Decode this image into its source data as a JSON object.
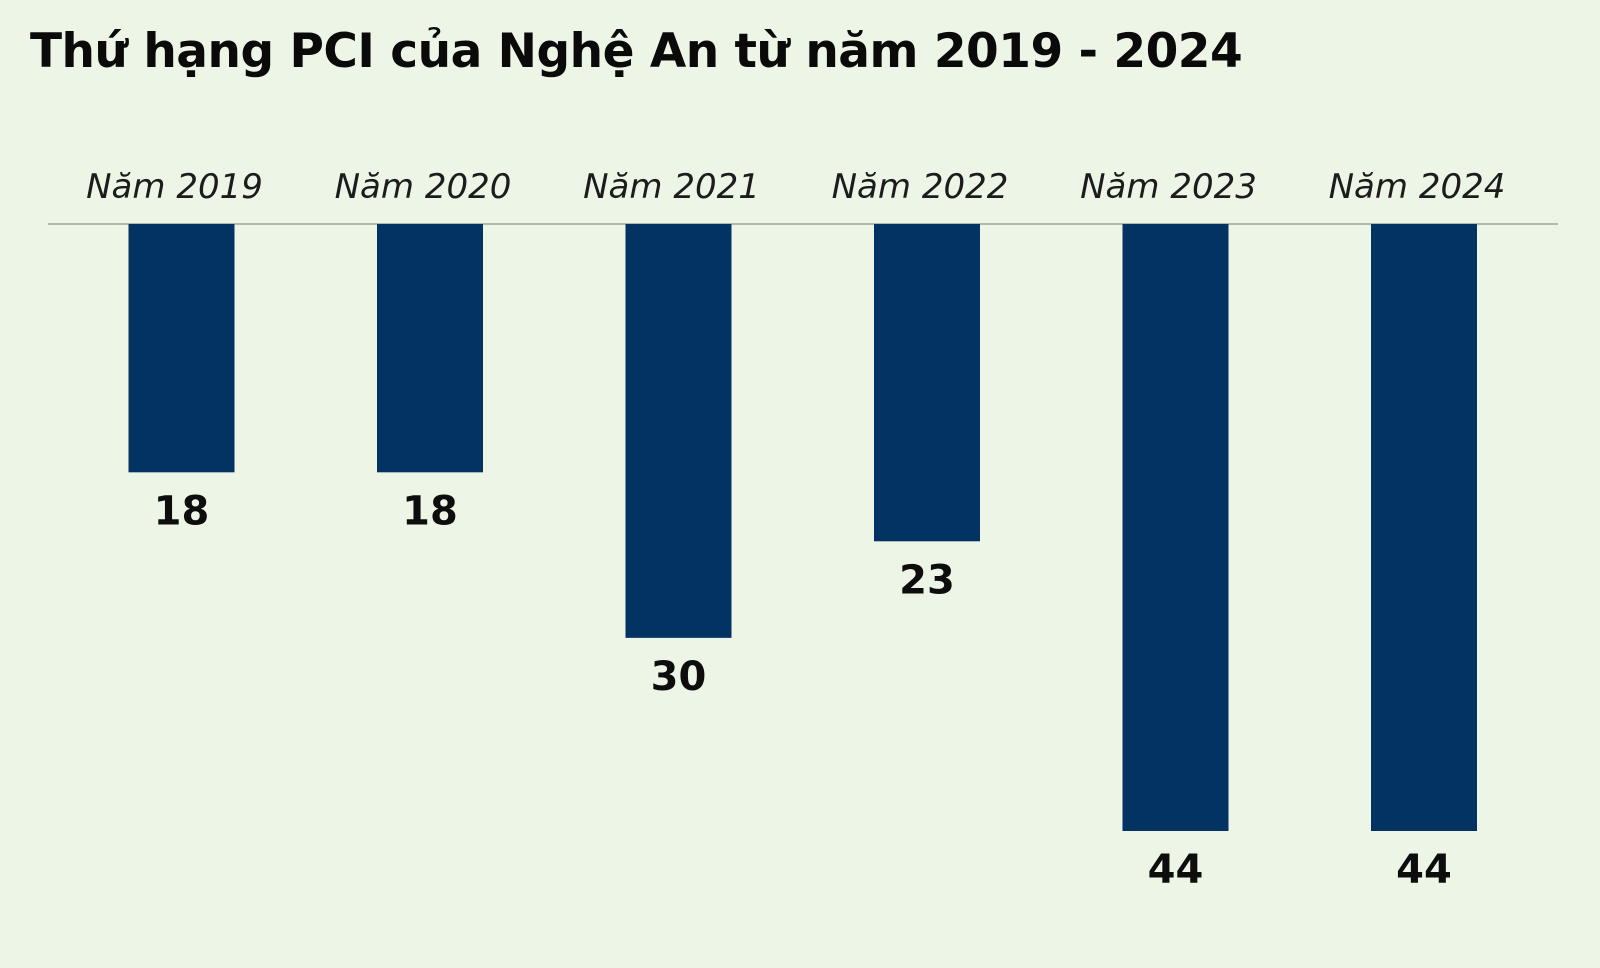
{
  "chart_data": {
    "type": "bar",
    "orientation": "vertical-downward",
    "title": "Thứ hạng PCI của Nghệ An từ năm 2019 - 2024",
    "categories": [
      "Năm 2019",
      "Năm 2020",
      "Năm 2021",
      "Năm 2022",
      "Năm 2023",
      "Năm 2024"
    ],
    "values": [
      18,
      18,
      30,
      23,
      44,
      44
    ],
    "ylim": [
      0,
      44
    ],
    "grid": false,
    "legend": "none",
    "colors": {
      "bar": "#033363",
      "baseline": "#8a9a8a",
      "background": "#edf5e6"
    }
  }
}
